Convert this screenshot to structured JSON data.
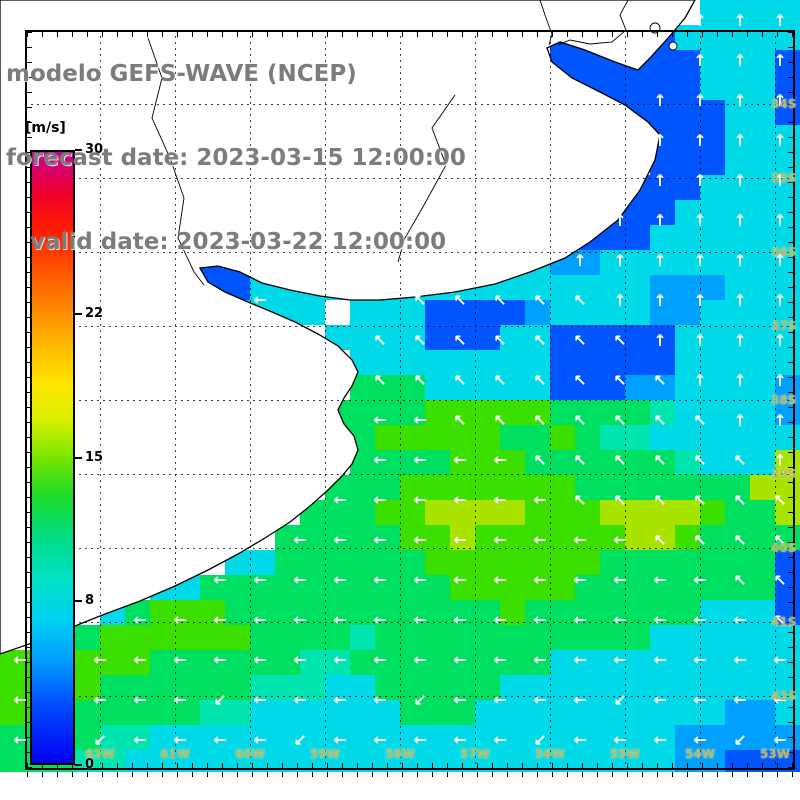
{
  "title": {
    "line1": "modelo GEFS-WAVE (NCEP)",
    "line2": "forecast date: 2023-03-15 12:00:00",
    "line3": "   valid date: 2023-03-22 12:00:00"
  },
  "colorbar": {
    "unit_label": "[m/s]",
    "min": 0,
    "max": 30,
    "ticks": [
      30,
      22,
      15,
      8,
      0
    ],
    "gradient": [
      "#c80096 0%",
      "#f00028 7%",
      "#ff1e00 13%",
      "#ff6a00 22%",
      "#ffb400 31%",
      "#ffe600 38%",
      "#d8f000 44%",
      "#78e600 50%",
      "#1edc28 56%",
      "#00dc82 63%",
      "#00e2c8 70%",
      "#00d2f0 76%",
      "#00a0ff 83%",
      "#0050ff 90%",
      "#0000f0 100%"
    ]
  },
  "map": {
    "lat_labels": [
      "34S",
      "35S",
      "36S",
      "37S",
      "38S",
      "39S",
      "40S",
      "41S",
      "42S"
    ],
    "lon_labels": [
      "62W",
      "61W",
      "60W",
      "59W",
      "58W",
      "57W",
      "56W",
      "55W",
      "54W",
      "53W"
    ],
    "arrow_color": "#ffffff",
    "cell_size": 25,
    "palette": {
      "B": "#0055ff",
      "d": "#00a0ff",
      "c": "#00d9e8",
      "t": "#00e4b0",
      "g": "#00e060",
      "G": "#3ce000",
      "y": "#a8e400"
    },
    "field_rows": [
      "............................cccc",
      "......................BBBBBccccc",
      "......................BBBBBBcccB",
      "......................BBBBBBcccB",
      "......................BBBBBBBccB",
      ".........................BBBBccc",
      "..........................BBBccc",
      ".........................BBBcccc",
      "........................BBBccccc",
      ".......................BBBcccccc",
      "........BB...........cddcccccccc",
      "........BBccccccccccccccccdddccc",
      "........Bcccc.cccBBBBdccccddcccc",
      ".............ccccBBBccBBBBBccccc",
      "..............ccccccccBBBBBccccc",
      "..............gggcccccBBBddccccd",
      ".............ggggGGGGGggggtccccd",
      ".............ggGGGGGggGgttcccccc",
      "..............ggggGGGggggggtcccy",
      ".............gggGGGGGGGgggggggyy",
      "............gggGGyyyyGGGyyyyGggy",
      "...........gggggGGyGGGGGGyyGgggg",
      ".........ccggggggGGGGGGGgggggggB",
      "......ccggggggggggGGGGGggggggggB",
      "....cgGGGgggggggggggGgggggggcccB",
      "..cgGGGGGGggggtgggggggggggcccccc",
      "GGGGGGggggggttggggggggcccccccccc",
      "GGGGggggggtttccgggggcccccccccccc",
      "GGggggggttccccccgggccccccccccddc",
      "ggggttcccccccccccccccccccccddddd",
      "gggttccccccccccccccccccccccddBBB",
      "................................"
    ],
    "arrow_rows": [
      ".................nnn",
      ".................nnn",
      "..............e.nnnn",
      "................nnnn",
      "................nnnn",
      "...............nnnnn",
      "..............nnnnnn",
      ".....ww...dddddnnnnn",
      ".........dddddddnnnn",
      ".........ddddddddnnn",
      ".........wwdddddddnn",
      ".........wwwwddddddn",
      "........wwwwwwdddddd",
      ".......wwwwwwwwwdddd",
      ".....wwwwwwwwwwwwwdd",
      "...wwwwwwwwwwwwwwwwd",
      "wwwwwwwwwwwwwwwwwwww",
      "wcwwwcwwwwcwwwwcwwww",
      "wwcwwwwcwwwwwcwwwwcw",
      "...................."
    ]
  }
}
